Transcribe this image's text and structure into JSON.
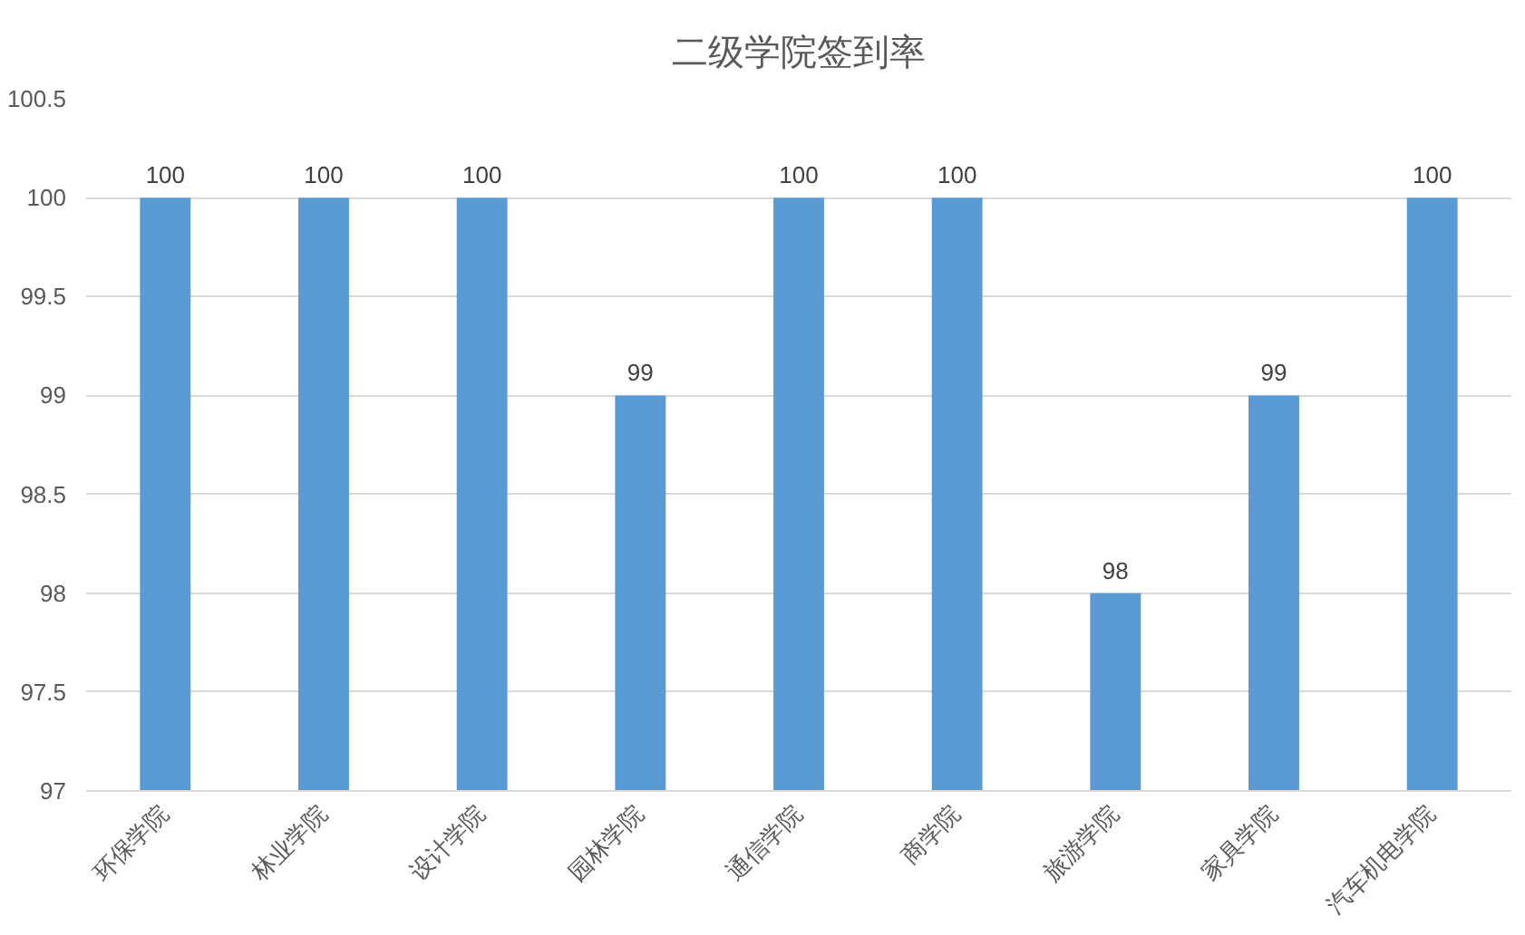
{
  "chart_data": {
    "type": "bar",
    "title": "二级学院签到率",
    "categories": [
      "环保学院",
      "林业学院",
      "设计学院",
      "园林学院",
      "通信学院",
      "商学院",
      "旅游学院",
      "家具学院",
      "汽车机电学院"
    ],
    "values": [
      100,
      100,
      100,
      99,
      100,
      100,
      98,
      99,
      100
    ],
    "color": "#5b9bd5",
    "ylim": [
      97,
      100.5
    ],
    "yticks": [
      97,
      97.5,
      98,
      98.5,
      99,
      99.5,
      100,
      100.5
    ],
    "grid": "y",
    "data_labels": true
  }
}
